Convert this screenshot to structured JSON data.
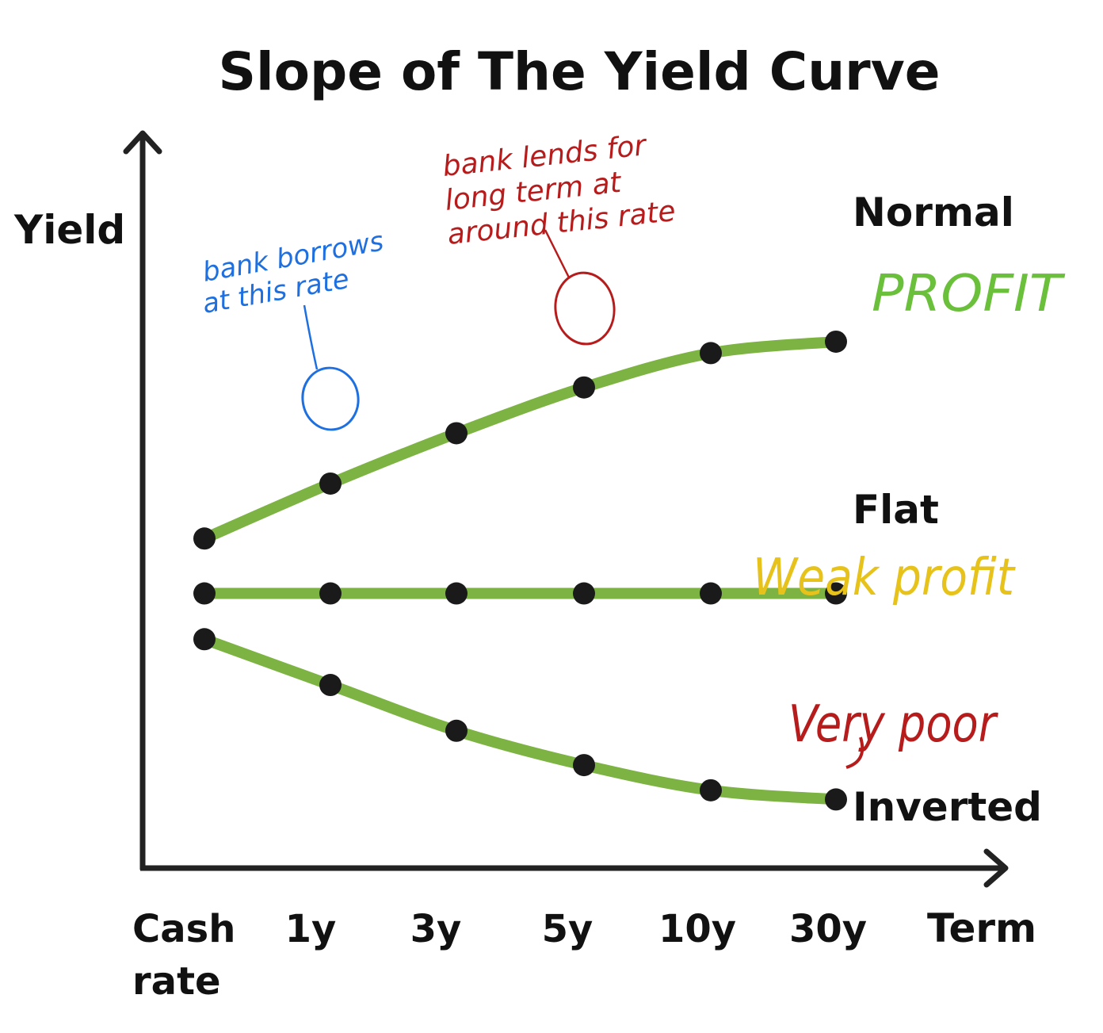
{
  "colors": {
    "curve": "#7cb342",
    "point": "#1a1a1a",
    "axis": "#222222",
    "note_blue": "#1e6fe0",
    "note_red": "#b71c1c",
    "note_green": "#6abf3b",
    "note_yellow": "#e6c21a"
  },
  "chart_data": {
    "type": "line",
    "title": "Slope of The Yield Curve",
    "xlabel": "Term",
    "ylabel": "Yield",
    "categories": [
      "Cash rate",
      "1y",
      "3y",
      "5y",
      "10y",
      "30y"
    ],
    "series": [
      {
        "name": "Normal",
        "values": [
          5.7,
          6.9,
          8.0,
          9.0,
          9.75,
          10.0
        ]
      },
      {
        "name": "Flat",
        "values": [
          4.5,
          4.5,
          4.5,
          4.5,
          4.5,
          4.5
        ]
      },
      {
        "name": "Inverted",
        "values": [
          3.5,
          2.5,
          1.5,
          0.75,
          0.2,
          0.0
        ]
      }
    ],
    "ylim": [
      -1.5,
      14
    ],
    "grid": false,
    "annotations": {
      "blue_note": [
        "bank borrows",
        "at this rate"
      ],
      "red_note": [
        "bank lends for",
        "long term at",
        "around this rate"
      ],
      "profit": "PROFIT",
      "weak_profit": "Weak profit",
      "very_poor": "Very poor"
    }
  }
}
